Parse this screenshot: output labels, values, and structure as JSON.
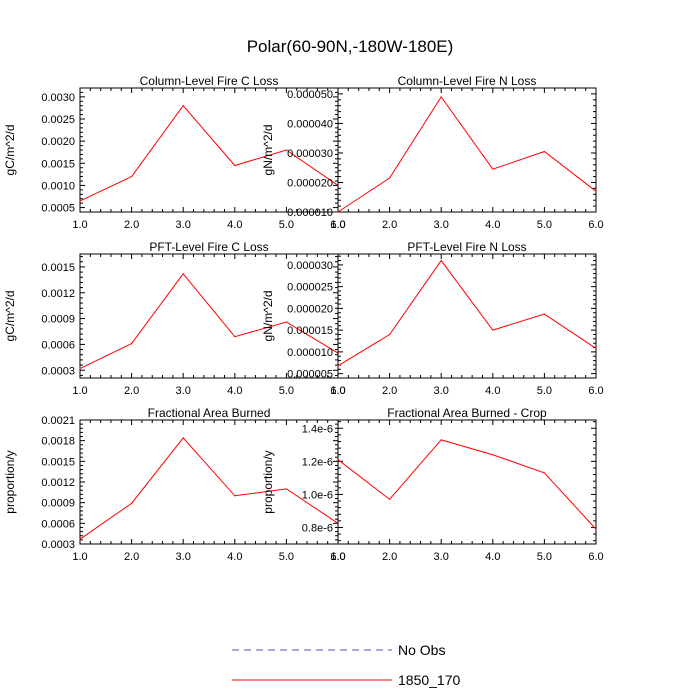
{
  "figure_title": "Polar(60-90N,-180W-180E)",
  "legend": {
    "entries": [
      {
        "label": "No Obs",
        "color": "#5555bb",
        "style": "dashed"
      },
      {
        "label": "1850_170",
        "color": "#ff0000",
        "style": "solid"
      }
    ]
  },
  "chart_data": [
    {
      "type": "line",
      "title": "Column-Level Fire C Loss",
      "xlabel": "",
      "ylabel": "gC/m^2/d",
      "x": [
        1,
        2,
        3,
        4,
        5,
        6
      ],
      "xlim": [
        1,
        6
      ],
      "xticks": [
        "1.0",
        "2.0",
        "3.0",
        "4.0",
        "5.0",
        "6.0"
      ],
      "ylim": [
        0.0004,
        0.0032
      ],
      "yticks": [
        "0.0005",
        "0.0010",
        "0.0015",
        "0.0020",
        "0.0025",
        "0.0030"
      ],
      "ytick_values": [
        0.0005,
        0.001,
        0.0015,
        0.002,
        0.0025,
        0.003
      ],
      "series": [
        {
          "name": "1850_170",
          "color": "#ff0000",
          "values": [
            0.00065,
            0.0012,
            0.0028,
            0.00145,
            0.0018,
            0.001
          ]
        }
      ]
    },
    {
      "type": "line",
      "title": "Column-Level Fire N Loss",
      "xlabel": "",
      "ylabel": "gN/m^2/d",
      "x": [
        1,
        2,
        3,
        4,
        5,
        6
      ],
      "xlim": [
        1,
        6
      ],
      "xticks": [
        "1.0",
        "2.0",
        "3.0",
        "4.0",
        "5.0",
        "6.0"
      ],
      "ylim": [
        1e-05,
        5.2e-05
      ],
      "yticks": [
        "0.000010",
        "0.000020",
        "0.000030",
        "0.000040",
        "0.000050"
      ],
      "ytick_values": [
        1e-05,
        2e-05,
        3e-05,
        4e-05,
        5e-05
      ],
      "series": [
        {
          "name": "1850_170",
          "color": "#ff0000",
          "values": [
            1e-05,
            2.15e-05,
            4.9e-05,
            2.45e-05,
            3.05e-05,
            1.7e-05
          ]
        }
      ]
    },
    {
      "type": "line",
      "title": "PFT-Level Fire C Loss",
      "xlabel": "",
      "ylabel": "gC/m^2/d",
      "x": [
        1,
        2,
        3,
        4,
        5,
        6
      ],
      "xlim": [
        1,
        6
      ],
      "xticks": [
        "1.0",
        "2.0",
        "3.0",
        "4.0",
        "5.0",
        "6.0"
      ],
      "ylim": [
        0.00021,
        0.00165
      ],
      "yticks": [
        "0.0003",
        "0.0006",
        "0.0009",
        "0.0012",
        "0.0015"
      ],
      "ytick_values": [
        0.0003,
        0.0006,
        0.0009,
        0.0012,
        0.0015
      ],
      "series": [
        {
          "name": "1850_170",
          "color": "#ff0000",
          "values": [
            0.00032,
            0.00061,
            0.00142,
            0.00069,
            0.00086,
            0.0005
          ]
        }
      ]
    },
    {
      "type": "line",
      "title": "PFT-Level Fire N Loss",
      "xlabel": "",
      "ylabel": "gN/m^2/d",
      "x": [
        1,
        2,
        3,
        4,
        5,
        6
      ],
      "xlim": [
        1,
        6
      ],
      "xticks": [
        "1.0",
        "2.0",
        "3.0",
        "4.0",
        "5.0",
        "6.0"
      ],
      "ylim": [
        4e-06,
        3.25e-05
      ],
      "yticks": [
        "0.000005",
        "0.000010",
        "0.000015",
        "0.000020",
        "0.000025",
        "0.000030"
      ],
      "ytick_values": [
        5e-06,
        1e-05,
        1.5e-05,
        2e-05,
        2.5e-05,
        3e-05
      ],
      "series": [
        {
          "name": "1850_170",
          "color": "#ff0000",
          "values": [
            6.8e-06,
            1.4e-05,
            3.1e-05,
            1.5e-05,
            1.87e-05,
            1.08e-05
          ]
        }
      ]
    },
    {
      "type": "line",
      "title": "Fractional Area Burned",
      "xlabel": "",
      "ylabel": "proportion/y",
      "x": [
        1,
        2,
        3,
        4,
        5,
        6
      ],
      "xlim": [
        1,
        6
      ],
      "xticks": [
        "1.0",
        "2.0",
        "3.0",
        "4.0",
        "5.0",
        "6.0"
      ],
      "ylim": [
        0.0003,
        0.0021
      ],
      "yticks": [
        "0.0003",
        "0.0006",
        "0.0009",
        "0.0012",
        "0.0015",
        "0.0018",
        "0.0021"
      ],
      "ytick_values": [
        0.0003,
        0.0006,
        0.0009,
        0.0012,
        0.0015,
        0.0018,
        0.0021
      ],
      "series": [
        {
          "name": "1850_170",
          "color": "#ff0000",
          "values": [
            0.00037,
            0.00089,
            0.00184,
            0.001,
            0.0011,
            0.0006
          ]
        }
      ]
    },
    {
      "type": "line",
      "title": "Fractional Area Burned - Crop",
      "xlabel": "",
      "ylabel": "proportion/y",
      "x": [
        1,
        2,
        3,
        4,
        5,
        6
      ],
      "xlim": [
        1,
        6
      ],
      "xticks": [
        "1.0",
        "2.0",
        "3.0",
        "4.0",
        "5.0",
        "6.0"
      ],
      "ylim": [
        7e-07,
        1.45e-06
      ],
      "yticks": [
        "0.8e-6",
        "1.0e-6",
        "1.2e-6",
        "1.4e-6"
      ],
      "ytick_values": [
        8e-07,
        1e-06,
        1.2e-06,
        1.4e-06
      ],
      "series": [
        {
          "name": "1850_170",
          "color": "#ff0000",
          "values": [
            1.21e-06,
            9.7e-07,
            1.33e-06,
            1.24e-06,
            1.13e-06,
            7.9e-07
          ]
        }
      ]
    }
  ]
}
